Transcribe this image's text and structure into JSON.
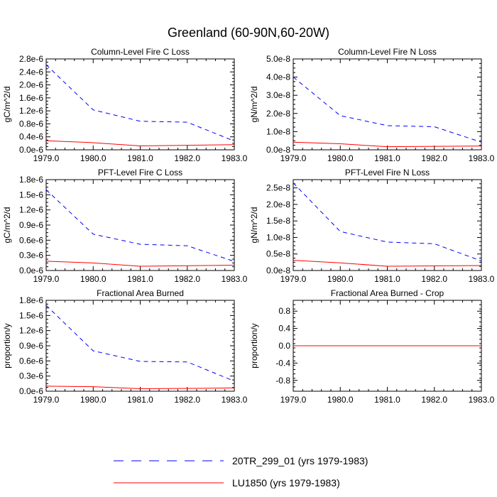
{
  "figure_title": "Greenland (60-90N,60-20W)",
  "colors": {
    "series_20tr": "#0000ff",
    "series_lu1850": "#ff0000",
    "frame": "#000000"
  },
  "legend": [
    {
      "label": "20TR_299_01 (yrs 1979-1983)",
      "style": "dashed",
      "color": "#0000ff"
    },
    {
      "label": "LU1850 (yrs 1979-1983)",
      "style": "solid",
      "color": "#ff0000"
    }
  ],
  "chart_data": [
    {
      "type": "line",
      "title": "Column-Level Fire C Loss",
      "xlabel": "",
      "ylabel": "gC/m^2/d",
      "x": [
        1979,
        1980,
        1981,
        1982,
        1983
      ],
      "xlim": [
        1979,
        1983
      ],
      "ylim": [
        0,
        2.8e-06
      ],
      "xticks": [
        "1979.0",
        "1980.0",
        "1981.0",
        "1982.0",
        "1983.0"
      ],
      "yticks": [
        0,
        4e-07,
        8e-07,
        1.2e-06,
        1.6e-06,
        2e-06,
        2.4e-06,
        2.8e-06
      ],
      "ytick_labels": [
        "0.0e-6",
        "0.4e-6",
        "0.8e-6",
        "1.2e-6",
        "1.6e-6",
        "2.0e-6",
        "2.4e-6",
        "2.8e-6"
      ],
      "series": [
        {
          "name": "20TR_299_01 (yrs 1979-1983)",
          "values": [
            2.62e-06,
            1.23e-06,
            8.8e-07,
            8.5e-07,
            2.7e-07
          ]
        },
        {
          "name": "LU1850 (yrs 1979-1983)",
          "values": [
            2.8e-07,
            2.2e-07,
            1.2e-07,
            1.4e-07,
            1.6e-07
          ]
        }
      ]
    },
    {
      "type": "line",
      "title": "Column-Level Fire N Loss",
      "xlabel": "",
      "ylabel": "gN/m^2/d",
      "x": [
        1979,
        1980,
        1981,
        1982,
        1983
      ],
      "xlim": [
        1979,
        1983
      ],
      "ylim": [
        0,
        5e-08
      ],
      "xticks": [
        "1979.0",
        "1980.0",
        "1981.0",
        "1982.0",
        "1983.0"
      ],
      "yticks": [
        0,
        1e-08,
        2e-08,
        3e-08,
        4e-08,
        5e-08
      ],
      "ytick_labels": [
        "0.0e-8",
        "1.0e-8",
        "2.0e-8",
        "3.0e-8",
        "4.0e-8",
        "5.0e-8"
      ],
      "series": [
        {
          "name": "20TR_299_01 (yrs 1979-1983)",
          "values": [
            4e-08,
            1.88e-08,
            1.33e-08,
            1.27e-08,
            4.2e-09
          ]
        },
        {
          "name": "LU1850 (yrs 1979-1983)",
          "values": [
            4.2e-09,
            3.3e-09,
            1.7e-09,
            1.9e-09,
            2.1e-09
          ]
        }
      ]
    },
    {
      "type": "line",
      "title": "PFT-Level Fire C Loss",
      "xlabel": "",
      "ylabel": "gC/m^2/d",
      "x": [
        1979,
        1980,
        1981,
        1982,
        1983
      ],
      "xlim": [
        1979,
        1983
      ],
      "ylim": [
        0,
        1.8e-06
      ],
      "xticks": [
        "1979.0",
        "1980.0",
        "1981.0",
        "1982.0",
        "1983.0"
      ],
      "yticks": [
        0,
        3e-07,
        6e-07,
        9e-07,
        1.2e-06,
        1.5e-06,
        1.8e-06
      ],
      "ytick_labels": [
        "0.0e-6",
        "0.3e-6",
        "0.6e-6",
        "0.9e-6",
        "1.2e-6",
        "1.5e-6",
        "1.8e-6"
      ],
      "series": [
        {
          "name": "20TR_299_01 (yrs 1979-1983)",
          "values": [
            1.6e-06,
            7.2e-07,
            5.2e-07,
            4.9e-07,
            1.8e-07
          ]
        },
        {
          "name": "LU1850 (yrs 1979-1983)",
          "values": [
            1.85e-07,
            1.5e-07,
            8.5e-08,
            9.5e-08,
            1.05e-07
          ]
        }
      ]
    },
    {
      "type": "line",
      "title": "PFT-Level Fire N Loss",
      "xlabel": "",
      "ylabel": "gN/m^2/d",
      "x": [
        1979,
        1980,
        1981,
        1982,
        1983
      ],
      "xlim": [
        1979,
        1983
      ],
      "ylim": [
        0,
        2.75e-08
      ],
      "xticks": [
        "1979.0",
        "1980.0",
        "1981.0",
        "1982.0",
        "1983.0"
      ],
      "yticks": [
        0,
        5e-09,
        1e-08,
        1.5e-08,
        2e-08,
        2.5e-08
      ],
      "ytick_labels": [
        "0.0e-8",
        "0.5e-8",
        "1.0e-8",
        "1.5e-8",
        "2.0e-8",
        "2.5e-8"
      ],
      "series": [
        {
          "name": "20TR_299_01 (yrs 1979-1983)",
          "values": [
            2.65e-08,
            1.18e-08,
            8.6e-09,
            8.1e-09,
            2.9e-09
          ]
        },
        {
          "name": "LU1850 (yrs 1979-1983)",
          "values": [
            3.1e-09,
            2.3e-09,
            1.3e-09,
            1.4e-09,
            1.5e-09
          ]
        }
      ]
    },
    {
      "type": "line",
      "title": "Fractional Area Burned",
      "xlabel": "",
      "ylabel": "proportion/y",
      "x": [
        1979,
        1980,
        1981,
        1982,
        1983
      ],
      "xlim": [
        1979,
        1983
      ],
      "ylim": [
        0,
        1.8e-06
      ],
      "xticks": [
        "1979.0",
        "1980.0",
        "1981.0",
        "1982.0",
        "1983.0"
      ],
      "yticks": [
        0,
        3e-07,
        6e-07,
        9e-07,
        1.2e-06,
        1.5e-06,
        1.8e-06
      ],
      "ytick_labels": [
        "0.0e-6",
        "0.3e-6",
        "0.6e-6",
        "0.9e-6",
        "1.2e-6",
        "1.5e-6",
        "1.8e-6"
      ],
      "series": [
        {
          "name": "20TR_299_01 (yrs 1979-1983)",
          "values": [
            1.7e-06,
            8e-07,
            5.9e-07,
            5.8e-07,
            2e-07
          ]
        },
        {
          "name": "LU1850 (yrs 1979-1983)",
          "values": [
            1e-07,
            9e-08,
            5e-08,
            5.5e-08,
            6.5e-08
          ]
        }
      ]
    },
    {
      "type": "line",
      "title": "Fractional Area Burned - Crop",
      "xlabel": "",
      "ylabel": "proportion/y",
      "x": [
        1979,
        1980,
        1981,
        1982,
        1983
      ],
      "xlim": [
        1979,
        1983
      ],
      "ylim": [
        -1.05,
        1.05
      ],
      "xticks": [
        "1979.0",
        "1980.0",
        "1981.0",
        "1982.0",
        "1983.0"
      ],
      "yticks": [
        -0.8,
        -0.4,
        0.0,
        0.4,
        0.8
      ],
      "ytick_labels": [
        "-0.8",
        "-0.4",
        "0.0",
        "0.4",
        "0.8"
      ],
      "series": [
        {
          "name": "20TR_299_01 (yrs 1979-1983)",
          "values": [
            0,
            0,
            0,
            0,
            0
          ]
        },
        {
          "name": "LU1850 (yrs 1979-1983)",
          "values": [
            0,
            0,
            0,
            0,
            0
          ]
        }
      ]
    }
  ]
}
